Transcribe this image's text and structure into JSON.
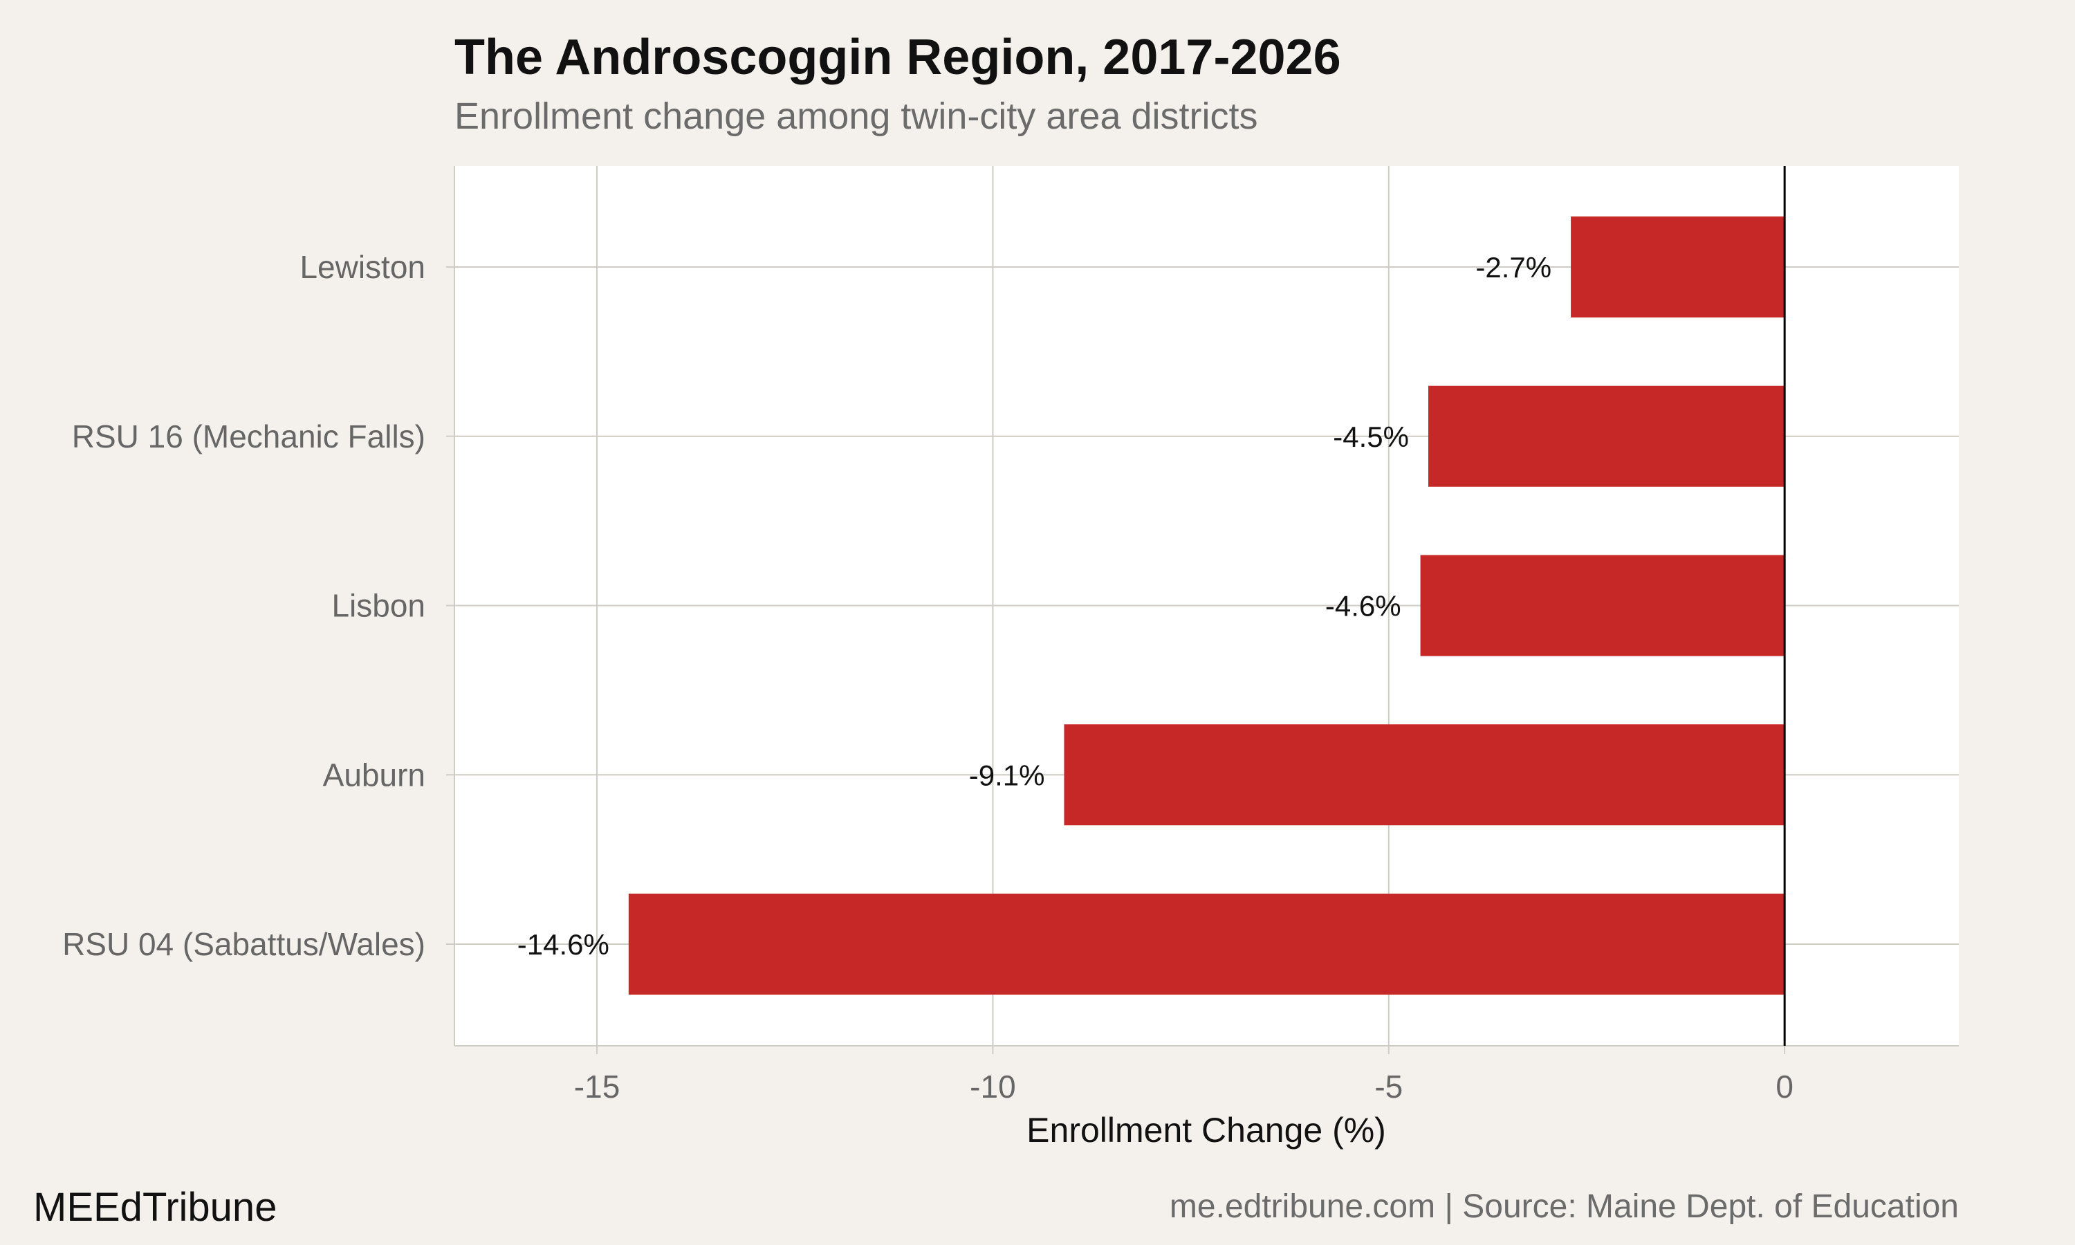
{
  "chart_data": {
    "type": "bar",
    "orientation": "horizontal",
    "title": "The Androscoggin Region, 2017-2026",
    "subtitle": "Enrollment change among twin-city area districts",
    "xlabel": "Enrollment Change (%)",
    "ylabel": "",
    "categories": [
      "Lewiston",
      "RSU 16 (Mechanic Falls)",
      "Lisbon",
      "Auburn",
      "RSU 04 (Sabattus/Wales)"
    ],
    "values": [
      -2.7,
      -4.5,
      -4.6,
      -9.1,
      -14.6
    ],
    "value_labels": [
      "-2.7%",
      "-4.5%",
      "-4.6%",
      "-9.1%",
      "-14.6%"
    ],
    "xlim": [
      -16.8,
      2.2
    ],
    "x_ticks": [
      -15,
      -10,
      -5,
      0
    ],
    "x_tick_labels": [
      "-15",
      "-10",
      "-5",
      "0"
    ],
    "grid": true,
    "legend": "none",
    "bar_color": "#c62828",
    "zero_line_color": "#000000"
  },
  "footer": {
    "brand": "MEEdTribune",
    "source": "me.edtribune.com | Source: Maine Dept. of Education"
  }
}
